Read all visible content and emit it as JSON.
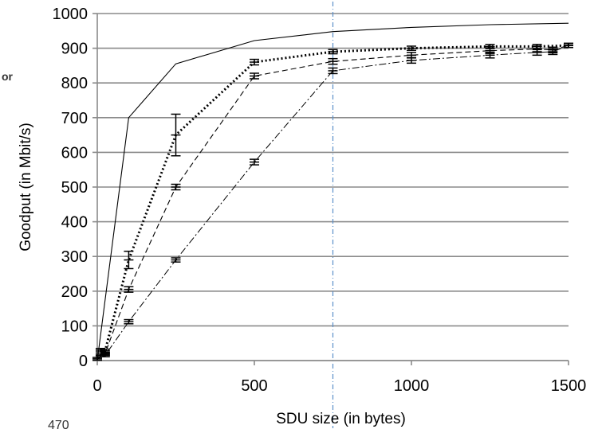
{
  "chart_data": {
    "type": "line",
    "xlabel": "SDU size (in bytes)",
    "ylabel": "Goodput (in Mbit/s)",
    "xlim": [
      0,
      1500
    ],
    "ylim": [
      0,
      1000
    ],
    "x_ticks": [
      0,
      500,
      1000,
      1500
    ],
    "y_ticks": [
      0,
      100,
      200,
      300,
      400,
      500,
      600,
      700,
      800,
      900,
      1000
    ],
    "grid": "horizontal",
    "reference_line_x": 750,
    "series": [
      {
        "style": "solid",
        "color": "#000000",
        "x": [
          0,
          100,
          250,
          500,
          750,
          1000,
          1250,
          1500
        ],
        "y": [
          0,
          700,
          855,
          922,
          948,
          960,
          968,
          972
        ]
      },
      {
        "style": "dotted-bold",
        "color": "#000000",
        "x": [
          10,
          25,
          100,
          250,
          500,
          750,
          1000,
          1250,
          1400,
          1500
        ],
        "y": [
          30,
          28,
          290,
          650,
          860,
          890,
          900,
          905,
          905,
          908
        ],
        "err": [
          5,
          5,
          25,
          60,
          8,
          6,
          6,
          6,
          6,
          6
        ]
      },
      {
        "style": "dashed",
        "color": "#000000",
        "x": [
          10,
          25,
          100,
          250,
          500,
          750,
          1000,
          1250,
          1400,
          1450,
          1500
        ],
        "y": [
          15,
          20,
          205,
          500,
          820,
          862,
          880,
          893,
          898,
          895,
          908
        ],
        "err": [
          4,
          4,
          8,
          8,
          8,
          8,
          8,
          8,
          8,
          8,
          6
        ]
      },
      {
        "style": "dash-dot",
        "color": "#000000",
        "x": [
          0,
          25,
          100,
          250,
          500,
          750,
          1000,
          1250,
          1400,
          1450,
          1500
        ],
        "y": [
          5,
          15,
          112,
          290,
          572,
          835,
          865,
          880,
          888,
          890,
          908
        ],
        "err": [
          4,
          4,
          6,
          6,
          8,
          8,
          8,
          8,
          8,
          8,
          6
        ]
      }
    ]
  },
  "fragments": {
    "left_edge": "or",
    "bottom_left": "470"
  }
}
